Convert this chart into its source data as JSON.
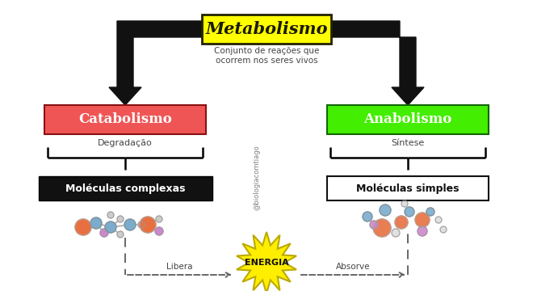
{
  "bg_color": "#ffffff",
  "title_text": "Metabolismo",
  "title_bg": "#ffff00",
  "title_color": "#1a1a00",
  "subtitle_text": "Conjunto de reações que\nocorrem nos seres vivos",
  "subtitle_color": "#444444",
  "catabolismo_text": "Catabolismo",
  "catabolismo_bg": "#f05555",
  "catabolismo_color": "#ffffff",
  "anabolismo_text": "Anabolismo",
  "anabolismo_bg": "#44ee00",
  "anabolismo_color": "#ffffff",
  "degradacao_text": "Degradação",
  "sintese_text": "Síntese",
  "moleculas_complexas_text": "Moléculas complexas",
  "moleculas_simples_text": "Moléculas simples",
  "energia_text": "ENERGIA",
  "libera_text": "Libera",
  "absorve_text": "Absorve",
  "molecules_box_bg": "#111111",
  "molecules_box_color": "#ffffff",
  "simples_box_bg": "#ffffff",
  "simples_box_color": "#111111",
  "arrow_color": "#111111",
  "dashed_color": "#666666"
}
